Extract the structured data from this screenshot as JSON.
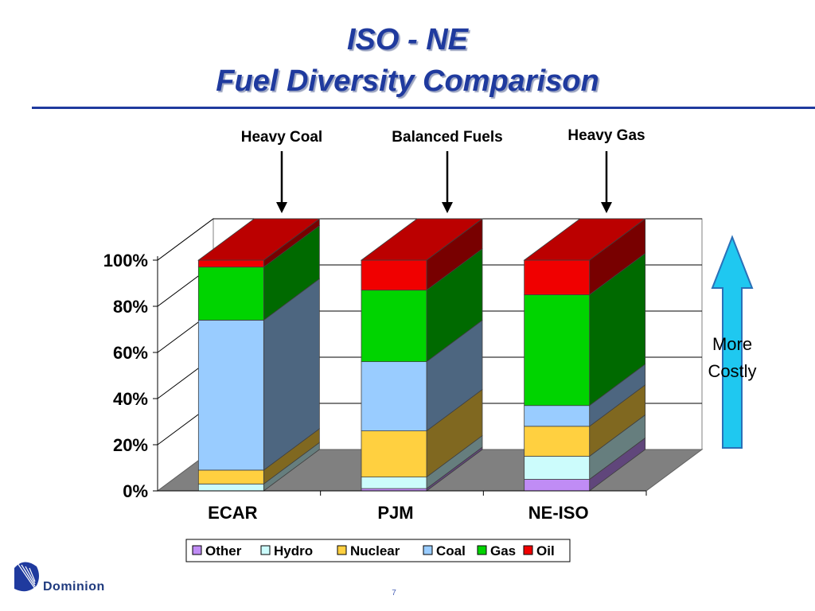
{
  "slide": {
    "title_line1": "ISO - NE",
    "title_line2": "Fuel Diversity Comparison",
    "page_number": "7",
    "logo_text": "Dominion"
  },
  "annotations": [
    {
      "label": "Heavy Coal",
      "category": "ECAR"
    },
    {
      "label": "Balanced Fuels",
      "category": "PJM"
    },
    {
      "label": "Heavy Gas",
      "category": "NE-ISO"
    }
  ],
  "side_arrow": {
    "label_line1": "More",
    "label_line2": "Costly",
    "color": "#1fc8f0"
  },
  "chart_data": {
    "type": "bar",
    "stacked": true,
    "three_d": true,
    "title": "",
    "xlabel": "",
    "ylabel": "",
    "categories": [
      "ECAR",
      "PJM",
      "NE-ISO"
    ],
    "ylim": [
      0,
      100
    ],
    "y_ticks": [
      0,
      20,
      40,
      60,
      80,
      100
    ],
    "y_tick_labels": [
      "0%",
      "20%",
      "40%",
      "60%",
      "80%",
      "100%"
    ],
    "grid": true,
    "legend_position": "bottom",
    "series": [
      {
        "name": "Other",
        "color": "#c08cf5",
        "values": [
          0,
          1,
          5
        ]
      },
      {
        "name": "Hydro",
        "color": "#ccfcfc",
        "values": [
          3,
          5,
          10
        ]
      },
      {
        "name": "Nuclear",
        "color": "#ffd040",
        "values": [
          6,
          20,
          13
        ]
      },
      {
        "name": "Coal",
        "color": "#99ccff",
        "values": [
          65,
          30,
          9
        ]
      },
      {
        "name": "Gas",
        "color": "#00d400",
        "values": [
          23,
          31,
          48
        ]
      },
      {
        "name": "Oil",
        "color": "#f00000",
        "values": [
          3,
          13,
          15
        ]
      }
    ]
  }
}
